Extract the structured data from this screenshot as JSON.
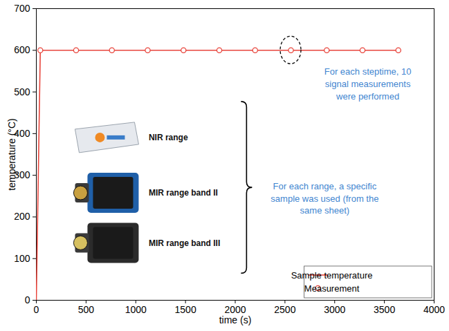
{
  "chart_data": {
    "type": "line",
    "x_label": "time (s)",
    "y_label": "temperature (°C)",
    "xlim": [
      0,
      4000
    ],
    "xticks": [
      0,
      500,
      1000,
      1500,
      2000,
      2500,
      3000,
      3500,
      4000
    ],
    "ylim": [
      0,
      700
    ],
    "yticks": [
      0,
      100,
      200,
      300,
      400,
      500,
      600,
      700
    ],
    "grid": false,
    "legend": "bottom-right",
    "series": [
      {
        "name": "Sample temperature",
        "type": "line",
        "marker": "none",
        "line_style": "solid",
        "color": "#e8453c",
        "x": [
          0,
          40,
          3640
        ],
        "values": [
          0,
          600,
          600
        ]
      },
      {
        "name": "Measurement",
        "type": "scatter",
        "marker": "circle-open",
        "color": "#e8453c",
        "x": [
          40,
          400,
          760,
          1120,
          1480,
          1840,
          2200,
          2560,
          2920,
          3280,
          3640
        ],
        "values": [
          600,
          600,
          600,
          600,
          600,
          600,
          600,
          600,
          600,
          600,
          600
        ]
      }
    ],
    "annotations": [
      {
        "text": "For each steptime, 10 signal measurements were performed",
        "x": 3333,
        "y": 521
      },
      {
        "text": "For each range, a specific sample was used (from the same sheet)",
        "x": 2900,
        "y": 246
      }
    ],
    "instrument_labels": [
      {
        "text": "NIR range",
        "x": 1130,
        "y": 390
      },
      {
        "text": "MIR range band II",
        "x": 1130,
        "y": 257
      },
      {
        "text": "MIR range band III",
        "x": 1130,
        "y": 137
      }
    ]
  }
}
